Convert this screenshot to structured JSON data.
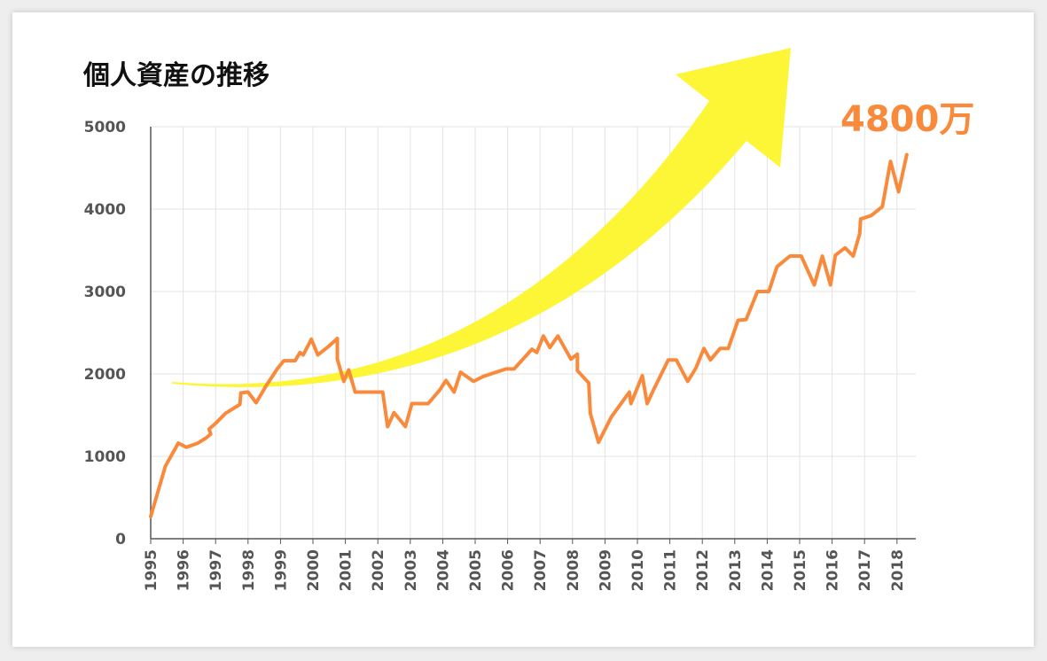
{
  "chart_data": {
    "type": "line",
    "title": "個人資産の推移",
    "annotation": "4800万",
    "xlabel": "",
    "ylabel": "",
    "xlim": [
      1995,
      2018.4
    ],
    "ylim": [
      0,
      5000
    ],
    "yticks": [
      0,
      1000,
      2000,
      3000,
      4000,
      5000
    ],
    "xticks": [
      "1995",
      "1996",
      "1997",
      "1998",
      "1999",
      "2000",
      "2001",
      "2002",
      "2003",
      "2004",
      "2005",
      "2006",
      "2007",
      "2008",
      "2009",
      "2010",
      "2011",
      "2012",
      "2013",
      "2014",
      "2015",
      "2016",
      "2017",
      "2018"
    ],
    "grid": true,
    "legend": "none",
    "series": [
      {
        "color": "#f98a3b",
        "points": [
          [
            1995.0,
            270
          ],
          [
            1995.45,
            880
          ],
          [
            1995.85,
            1160
          ],
          [
            1996.1,
            1110
          ],
          [
            1996.45,
            1160
          ],
          [
            1996.7,
            1220
          ],
          [
            1996.85,
            1270
          ],
          [
            1996.8,
            1330
          ],
          [
            1997.0,
            1400
          ],
          [
            1997.3,
            1520
          ],
          [
            1997.75,
            1630
          ],
          [
            1997.78,
            1770
          ],
          [
            1998.0,
            1780
          ],
          [
            1998.25,
            1650
          ],
          [
            1998.55,
            1850
          ],
          [
            1998.9,
            2060
          ],
          [
            1999.1,
            2160
          ],
          [
            1999.45,
            2160
          ],
          [
            1999.6,
            2260
          ],
          [
            1999.7,
            2230
          ],
          [
            1999.95,
            2420
          ],
          [
            2000.15,
            2230
          ],
          [
            2000.5,
            2340
          ],
          [
            2000.75,
            2430
          ],
          [
            2000.75,
            2180
          ],
          [
            2000.95,
            1910
          ],
          [
            2001.1,
            2050
          ],
          [
            2001.3,
            1780
          ],
          [
            2001.75,
            1780
          ],
          [
            2002.15,
            1780
          ],
          [
            2002.3,
            1360
          ],
          [
            2002.5,
            1530
          ],
          [
            2002.85,
            1360
          ],
          [
            2003.05,
            1640
          ],
          [
            2003.55,
            1640
          ],
          [
            2003.9,
            1800
          ],
          [
            2004.1,
            1920
          ],
          [
            2004.35,
            1780
          ],
          [
            2004.55,
            2020
          ],
          [
            2004.95,
            1910
          ],
          [
            2005.25,
            1970
          ],
          [
            2005.95,
            2060
          ],
          [
            2006.2,
            2060
          ],
          [
            2006.75,
            2300
          ],
          [
            2006.9,
            2260
          ],
          [
            2007.1,
            2460
          ],
          [
            2007.3,
            2320
          ],
          [
            2007.55,
            2460
          ],
          [
            2007.95,
            2180
          ],
          [
            2008.15,
            2240
          ],
          [
            2008.15,
            2040
          ],
          [
            2008.5,
            1890
          ],
          [
            2008.55,
            1520
          ],
          [
            2008.8,
            1170
          ],
          [
            2009.2,
            1480
          ],
          [
            2009.75,
            1780
          ],
          [
            2009.8,
            1640
          ],
          [
            2010.15,
            1980
          ],
          [
            2010.3,
            1640
          ],
          [
            2010.5,
            1810
          ],
          [
            2010.95,
            2170
          ],
          [
            2011.2,
            2170
          ],
          [
            2011.55,
            1910
          ],
          [
            2011.8,
            2070
          ],
          [
            2012.05,
            2310
          ],
          [
            2012.25,
            2170
          ],
          [
            2012.55,
            2310
          ],
          [
            2012.8,
            2310
          ],
          [
            2013.1,
            2650
          ],
          [
            2013.35,
            2660
          ],
          [
            2013.7,
            3000
          ],
          [
            2014.05,
            3000
          ],
          [
            2014.3,
            3300
          ],
          [
            2014.7,
            3430
          ],
          [
            2015.05,
            3430
          ],
          [
            2015.45,
            3080
          ],
          [
            2015.7,
            3430
          ],
          [
            2015.95,
            3080
          ],
          [
            2016.1,
            3440
          ],
          [
            2016.4,
            3530
          ],
          [
            2016.65,
            3430
          ],
          [
            2016.85,
            3700
          ],
          [
            2016.88,
            3880
          ],
          [
            2017.2,
            3920
          ],
          [
            2017.55,
            4030
          ],
          [
            2017.8,
            4580
          ],
          [
            2018.05,
            4210
          ],
          [
            2018.3,
            4660
          ]
        ]
      }
    ]
  },
  "colors": {
    "line": "#f98a3b",
    "arrow": "#fcf636",
    "callout": "#f98a3b",
    "grid": "#e3e3e3",
    "axis": "#555555"
  }
}
